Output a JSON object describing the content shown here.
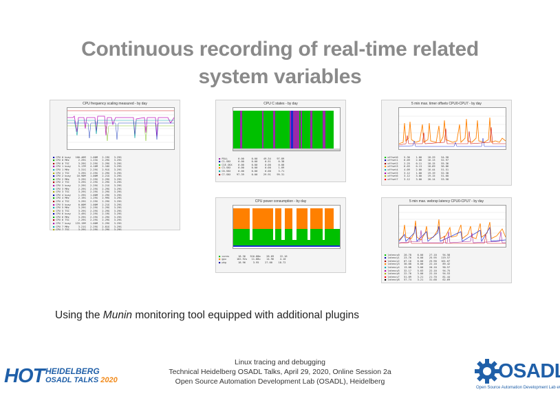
{
  "slide": {
    "title_line1": "Continuous recording of real-time related",
    "title_line2": "system variables",
    "caption_prefix": "Using the ",
    "caption_em": "Munin",
    "caption_suffix": " monitoring tool equipped with additional plugins",
    "footer": [
      "Linux tracing and debugging",
      "Technical Heidelberg OSADL Talks, April 29, 2020, Online Session 2a",
      "Open Source Automation Development Lab (OSADL), Heidelberg"
    ],
    "logo_hot": {
      "hot": "HOT",
      "line1": "HEIDELBERG",
      "line2a": "OSADL ",
      "line2b": "TALKS ",
      "line2c": "2020"
    },
    "logo_osadl": {
      "name": "OSADL",
      "tagline": "Open Source Automation Development Lab eG"
    }
  },
  "graphs": {
    "cpufreq": {
      "title": "CPU frequency scaling measured - by day"
    },
    "cstates": {
      "title": "CPU C states - by day"
    },
    "timer": {
      "title": "5 min max. timer offsets CPU0-CPU7 - by day"
    },
    "power": {
      "title": "CPU power consumption - by day"
    },
    "webrsp": {
      "title": "5 min max. webrsp latency CPU0-CPU7 - by day"
    }
  },
  "colors": {
    "green": "#00c000",
    "purple": "#9b2aa8",
    "orange": "#ff8000",
    "blue": "#1a2ad0",
    "red": "#d01010",
    "title_grey": "#8a8a8a",
    "hot_blue": "#1f5fa8",
    "hot_orange": "#f28a1a",
    "osadl_blue": "#1f5fa8"
  }
}
